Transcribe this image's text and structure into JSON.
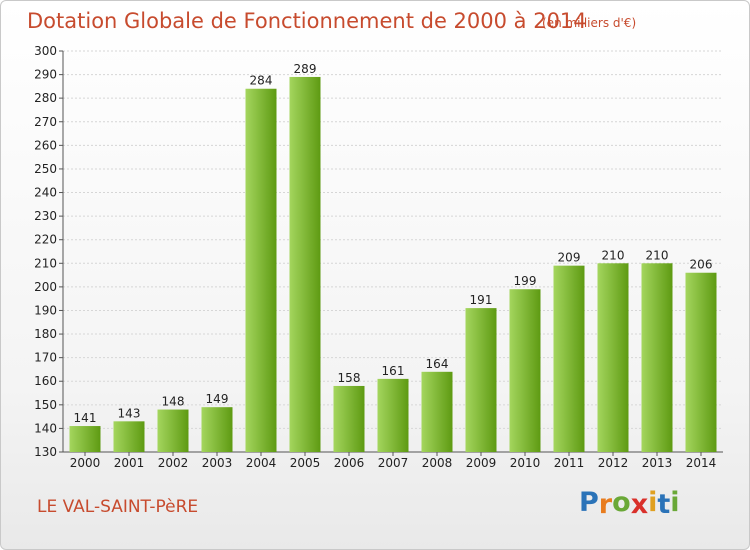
{
  "header": {
    "title": "Dotation Globale de Fonctionnement de 2000 à 2014",
    "unit_note": "(en milliers d'€)"
  },
  "footer": {
    "place": "LE VAL-SAINT-PèRE",
    "logo_letters": [
      "P",
      "r",
      "o",
      "x",
      "i",
      "t",
      "i"
    ],
    "logo_colors": [
      "#2b73b8",
      "#e87c1e",
      "#6aa837",
      "#d9302a",
      "#e0a020",
      "#2b73b8",
      "#6aa837"
    ]
  },
  "colors": {
    "bar_light": "#a4d65e",
    "bar_dark": "#5e9a12",
    "grid": "#d6d6d6",
    "title": "#c74b2e"
  },
  "chart_data": {
    "type": "bar",
    "title": "Dotation Globale de Fonctionnement de 2000 à 2014",
    "subtitle": "(en milliers d'€)",
    "xlabel": "",
    "ylabel": "",
    "categories": [
      "2000",
      "2001",
      "2002",
      "2003",
      "2004",
      "2005",
      "2006",
      "2007",
      "2008",
      "2009",
      "2010",
      "2011",
      "2012",
      "2013",
      "2014"
    ],
    "values": [
      141,
      143,
      148,
      149,
      284,
      289,
      158,
      161,
      164,
      191,
      199,
      209,
      210,
      210,
      206
    ],
    "ylim": [
      130,
      300
    ],
    "yticks": [
      130,
      140,
      150,
      160,
      170,
      180,
      190,
      200,
      210,
      220,
      230,
      240,
      250,
      260,
      270,
      280,
      290,
      300
    ],
    "grid": true,
    "legend": "none"
  }
}
